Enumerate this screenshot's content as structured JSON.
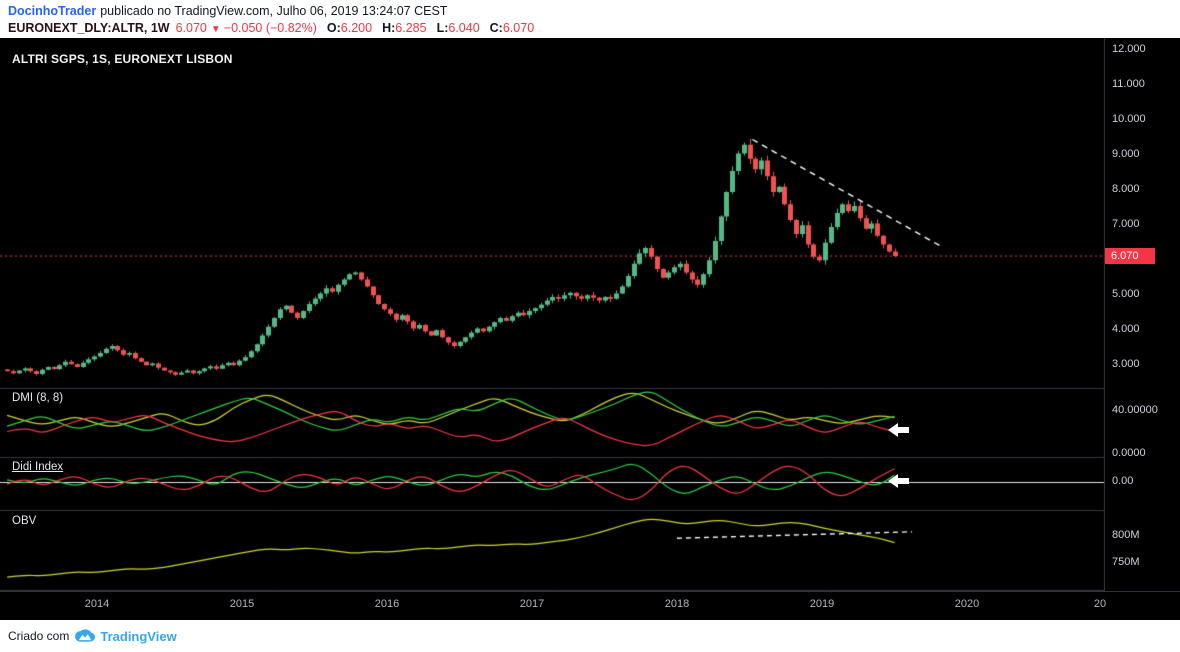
{
  "header": {
    "author": "DocinhoTrader",
    "published": "publicado no TradingView.com, Julho 06, 2019 13:24:07 CEST",
    "symbol": "EURONEXT_DLY:ALTR, 1W",
    "last_price": "6.070",
    "direction_icon": "▼",
    "change": "−0.050 (−0.82%)",
    "open_label": "O:",
    "open": "6.200",
    "high_label": "H:",
    "high": "6.285",
    "low_label": "L:",
    "low": "6.040",
    "close_label": "C:",
    "close": "6.070"
  },
  "chart": {
    "title": "ALTRI SGPS, 1S, EURONEXT LISBON",
    "dmi_label": "DMI (8, 8)",
    "didi_label": "Didi Index",
    "obv_label": "OBV",
    "price_axis": [
      "12.000",
      "11.000",
      "10.000",
      "9.000",
      "8.000",
      "7.000",
      "5.000",
      "4.000",
      "3.000"
    ],
    "price_tag": "6.070",
    "dmi_axis": [
      "40.00000",
      "0.0000"
    ],
    "didi_axis": [
      "0.00"
    ],
    "obv_axis": [
      "800M",
      "750M"
    ],
    "time_axis": [
      "2014",
      "2015",
      "2016",
      "2017",
      "2018",
      "2019",
      "2020",
      "20"
    ]
  },
  "footer": {
    "created_with": "Criado com",
    "brand": "TradingView"
  },
  "colors": {
    "chart_bg": "#000000",
    "separator": "#33363f",
    "candle_up": "#53b987",
    "candle_down": "#ef5350",
    "indicator_yellow": "#cdd335",
    "indicator_green": "#2ecc40",
    "indicator_red": "#f23645",
    "accent_red": "#f23645",
    "white": "#ffffff",
    "link_blue": "#2962ff",
    "brand_blue": "#37a6ef"
  },
  "chart_data": [
    {
      "type": "candlestick",
      "pane": "price",
      "title": "ALTRI SGPS, 1S, EURONEXT LISBON",
      "x_start": 2013.38,
      "x_step": 0.04,
      "xlim": [
        2013.3,
        2020.95
      ],
      "ylim": [
        2.3,
        12.3
      ],
      "y_ticks": [
        12,
        11,
        10,
        9,
        8,
        7,
        5,
        4,
        3
      ],
      "closes": [
        2.78,
        2.72,
        2.8,
        2.86,
        2.78,
        2.7,
        2.82,
        2.9,
        2.84,
        2.95,
        3.05,
        2.98,
        2.9,
        3.02,
        3.12,
        3.2,
        3.3,
        3.42,
        3.5,
        3.38,
        3.25,
        3.3,
        3.15,
        3.05,
        2.95,
        3.0,
        2.88,
        2.8,
        2.75,
        2.68,
        2.74,
        2.8,
        2.72,
        2.78,
        2.86,
        2.92,
        2.85,
        2.95,
        3.02,
        2.95,
        3.08,
        3.18,
        3.35,
        3.55,
        3.8,
        4.05,
        4.3,
        4.55,
        4.65,
        4.45,
        4.3,
        4.5,
        4.7,
        4.85,
        5.0,
        5.15,
        5.05,
        5.25,
        5.4,
        5.55,
        5.6,
        5.4,
        5.2,
        4.95,
        4.7,
        4.55,
        4.42,
        4.25,
        4.38,
        4.2,
        4.0,
        4.1,
        3.92,
        3.8,
        3.95,
        3.75,
        3.6,
        3.5,
        3.62,
        3.75,
        3.88,
        4.0,
        3.92,
        4.05,
        4.18,
        4.3,
        4.22,
        4.35,
        4.45,
        4.38,
        4.5,
        4.58,
        4.68,
        4.8,
        4.9,
        4.85,
        4.95,
        5.02,
        4.92,
        4.85,
        4.95,
        4.88,
        4.8,
        4.9,
        4.85,
        5.0,
        5.2,
        5.5,
        5.85,
        6.15,
        6.3,
        6.05,
        5.7,
        5.45,
        5.6,
        5.75,
        5.85,
        5.6,
        5.4,
        5.25,
        5.55,
        5.95,
        6.5,
        7.2,
        7.9,
        8.5,
        9.0,
        9.25,
        8.85,
        8.55,
        8.8,
        8.35,
        7.9,
        8.05,
        7.55,
        7.1,
        6.7,
        6.95,
        6.4,
        6.05,
        5.95,
        6.45,
        6.9,
        7.3,
        7.55,
        7.35,
        7.5,
        7.15,
        6.85,
        7.0,
        6.65,
        6.4,
        6.2,
        6.07
      ],
      "last_bar": {
        "open": 6.2,
        "high": 6.285,
        "low": 6.04,
        "close": 6.07
      },
      "price_line": {
        "value": 6.07,
        "label": "6.070",
        "style": "dotted",
        "color_key": "accent_red"
      },
      "trendline": {
        "x1": 2018.52,
        "p1": 9.4,
        "x2": 2019.82,
        "p2": 6.35,
        "style": "dashed",
        "color_key": "white"
      }
    },
    {
      "type": "line",
      "pane": "dmi",
      "title": "DMI (8, 8)",
      "x_start": 2013.38,
      "x_step": 0.12,
      "y_ticks": [
        40,
        0
      ],
      "series": [
        {
          "color_key": "yellow",
          "values": [
            35,
            30,
            26,
            30,
            34,
            28,
            24,
            28,
            33,
            38,
            30,
            25,
            30,
            42,
            50,
            55,
            48,
            40,
            34,
            30,
            36,
            30,
            26,
            31,
            27,
            33,
            40,
            46,
            52,
            45,
            38,
            33,
            29,
            35,
            44,
            52,
            57,
            50,
            42,
            36,
            30,
            27,
            33,
            40,
            36,
            30,
            34,
            30,
            27,
            31,
            35,
            33
          ]
        },
        {
          "color_key": "green",
          "values": [
            25,
            30,
            35,
            28,
            22,
            26,
            30,
            25,
            20,
            24,
            30,
            36,
            42,
            48,
            52,
            45,
            38,
            30,
            24,
            20,
            26,
            32,
            28,
            34,
            30,
            36,
            42,
            38,
            46,
            52,
            44,
            36,
            30,
            34,
            40,
            46,
            54,
            58,
            48,
            38,
            30,
            24,
            28,
            34,
            30,
            24,
            30,
            36,
            30,
            26,
            30,
            34
          ]
        },
        {
          "color_key": "red",
          "values": [
            20,
            24,
            18,
            24,
            30,
            34,
            28,
            32,
            36,
            28,
            22,
            16,
            12,
            10,
            14,
            20,
            26,
            32,
            36,
            40,
            30,
            24,
            28,
            22,
            26,
            20,
            14,
            18,
            10,
            14,
            22,
            28,
            34,
            26,
            18,
            12,
            8,
            6,
            14,
            22,
            30,
            36,
            30,
            22,
            26,
            32,
            24,
            18,
            24,
            30,
            24,
            20
          ]
        }
      ]
    },
    {
      "type": "line",
      "pane": "didi",
      "title": "Didi Index",
      "x_start": 2013.38,
      "x_step": 0.12,
      "y_ticks": [
        0
      ],
      "zero_line": 0,
      "series": [
        {
          "color_key": "green",
          "values": [
            0.01,
            -0.01,
            0.02,
            0.0,
            -0.02,
            0.01,
            0.02,
            -0.01,
            0.0,
            0.02,
            0.03,
            0.01,
            -0.02,
            0.04,
            0.05,
            0.02,
            -0.01,
            -0.03,
            0.0,
            0.02,
            -0.02,
            0.01,
            0.03,
            0.0,
            -0.02,
            0.01,
            0.04,
            0.02,
            0.05,
            0.03,
            -0.02,
            -0.04,
            -0.01,
            0.02,
            0.04,
            0.06,
            0.09,
            0.04,
            -0.03,
            -0.06,
            -0.02,
            0.01,
            0.03,
            -0.01,
            -0.04,
            -0.02,
            0.02,
            0.05,
            0.03,
            0.0,
            -0.02,
            0.03
          ]
        },
        {
          "color_key": "red",
          "values": [
            -0.01,
            0.02,
            -0.02,
            0.01,
            0.03,
            -0.01,
            -0.03,
            0.01,
            0.02,
            -0.01,
            -0.04,
            -0.02,
            0.03,
            0.02,
            -0.03,
            -0.05,
            0.01,
            0.04,
            0.02,
            -0.02,
            0.03,
            -0.01,
            -0.04,
            0.01,
            0.03,
            -0.02,
            -0.05,
            -0.02,
            0.03,
            0.06,
            0.02,
            -0.03,
            0.01,
            0.04,
            -0.02,
            -0.06,
            -0.09,
            -0.04,
            0.05,
            0.08,
            0.03,
            -0.03,
            -0.06,
            -0.01,
            0.05,
            0.08,
            0.04,
            -0.04,
            -0.07,
            -0.03,
            0.02,
            0.06
          ]
        }
      ]
    },
    {
      "type": "line",
      "pane": "obv",
      "title": "OBV",
      "x_start": 2013.38,
      "x_step": 0.12,
      "unit": "M",
      "y_ticks": [
        800,
        750
      ],
      "series": [
        {
          "color_key": "yellow",
          "values": [
            722,
            726,
            724,
            728,
            732,
            730,
            734,
            738,
            736,
            740,
            746,
            752,
            758,
            764,
            770,
            775,
            772,
            776,
            774,
            770,
            766,
            770,
            768,
            772,
            776,
            774,
            778,
            782,
            780,
            784,
            782,
            786,
            790,
            796,
            804,
            814,
            824,
            830,
            826,
            820,
            824,
            828,
            822,
            816,
            820,
            824,
            820,
            812,
            806,
            800,
            795,
            786
          ]
        }
      ],
      "trendline": {
        "x1": 2018.0,
        "v1": 794,
        "x2": 2019.62,
        "v2": 806,
        "style": "dashed",
        "color_key": "white"
      }
    }
  ]
}
